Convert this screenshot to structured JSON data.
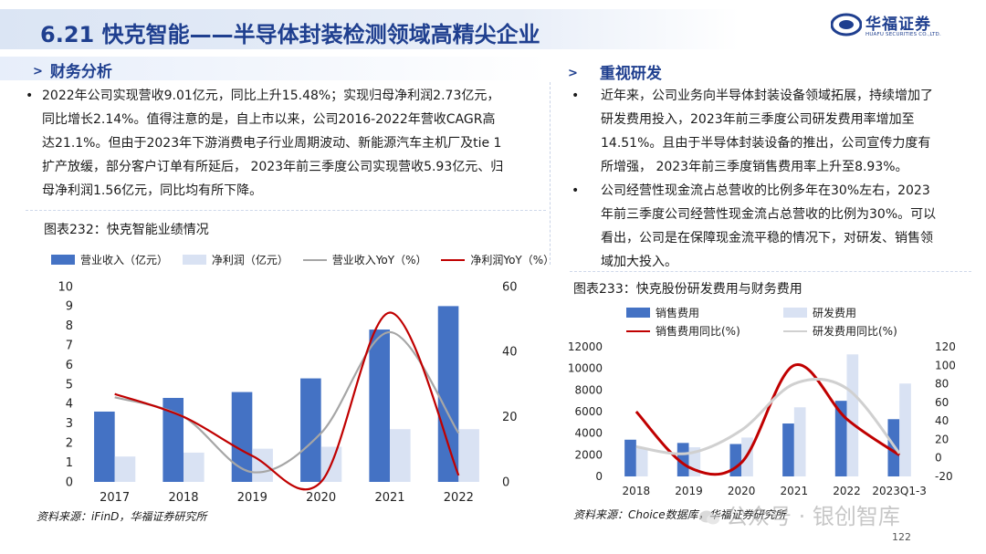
{
  "header": {
    "title": "6.21 快克智能——半导体封装检测领域高精尖企业",
    "logo_cn": "华福证券",
    "logo_en": "HUAFU SECURITIES CO.,LTD."
  },
  "left": {
    "section_title": "财务分析",
    "bullet": [
      "2022年公司实现营收9.01亿元，同比上升15.48%；实现归母净利润2.73亿元，",
      "同比增长2.14%。值得注意的是，自上市以来，公司2016-2022年营收CAGR高",
      "达21.1%。但由于2023年下游消费电子行业周期波动、新能源汽车主机厂及tie 1",
      "扩产放缓，部分客户订单有所延后， 2023年前三季度公司实现营收5.93亿元、归",
      "母净利润1.56亿元，同比均有所下降。"
    ],
    "figure_title": "图表232：快克智能业绩情况",
    "source": "资料来源：iFinD，华福证券研究所"
  },
  "right": {
    "section_title": "重视研发",
    "bullet1": [
      "近年来，公司业务向半导体封装设备领域拓展，持续增加了",
      "研发费用投入，2023年前三季度公司研发费用率增加至",
      "14.51%。且由于半导体封装设备的推出，公司宣传力度有",
      "所增强， 2023年前三季度销售费用率上升至8.93%。"
    ],
    "bullet2": [
      "公司经营性现金流占总营收的比例多年在30%左右，2023",
      "年前三季度公司经营性现金流占总营收的比例为30%。可以",
      "看出，公司是在保障现金流平稳的情况下，对研发、销售领",
      "域加大投入。"
    ],
    "figure_title": "图表233：快克股份研发费用与财务费用",
    "source": "资料来源：Choice数据库，华福证券研究所"
  },
  "watermark": "公众号 · 银创智库",
  "page_number": "122",
  "colors": {
    "brand": "#1f3f8f",
    "bar_dark": "#4472c4",
    "bar_light": "#d9e2f3",
    "line_red": "#c00000",
    "line_gray": "#a6a6a6"
  },
  "chart_data": [
    {
      "type": "bar",
      "categories": [
        "2017",
        "2018",
        "2019",
        "2020",
        "2021",
        "2022"
      ],
      "series": [
        {
          "name": "营业收入（亿元）",
          "kind": "bar",
          "axis": "left",
          "values": [
            3.6,
            4.3,
            4.6,
            5.3,
            7.8,
            9.0
          ]
        },
        {
          "name": "净利润（亿元）",
          "kind": "bar",
          "axis": "left",
          "values": [
            1.3,
            1.5,
            1.7,
            1.8,
            2.7,
            2.7
          ]
        },
        {
          "name": "营业收入YoY（%）",
          "kind": "line",
          "axis": "right",
          "values": [
            26,
            20,
            3,
            15,
            46,
            15
          ]
        },
        {
          "name": "净利润YoY（%）",
          "kind": "line",
          "axis": "right",
          "values": [
            27,
            20,
            8,
            0,
            52,
            2
          ]
        }
      ],
      "y_left": {
        "min": 0,
        "max": 10,
        "ticks": [
          "0",
          "1",
          "2",
          "3",
          "4",
          "5",
          "6",
          "7",
          "8",
          "9",
          "10"
        ]
      },
      "y_right": {
        "min": 0,
        "max": 60,
        "ticks": [
          "0",
          "20",
          "40",
          "60"
        ]
      },
      "grid": false,
      "legend": "top"
    },
    {
      "type": "bar",
      "categories": [
        "2018",
        "2019",
        "2020",
        "2021",
        "2022",
        "2023Q1-3"
      ],
      "series": [
        {
          "name": "销售费用",
          "kind": "bar",
          "axis": "left",
          "values": [
            3400,
            3100,
            3000,
            4900,
            7000,
            5300
          ]
        },
        {
          "name": "研发费用",
          "kind": "bar",
          "axis": "left",
          "values": [
            2600,
            2700,
            3600,
            6400,
            11300,
            8600
          ]
        },
        {
          "name": "销售费用同比(%)",
          "kind": "line",
          "axis": "right",
          "values": [
            50,
            -10,
            -5,
            100,
            42,
            3
          ]
        },
        {
          "name": "研发费用同比(%)",
          "kind": "line",
          "axis": "right",
          "values": [
            12,
            5,
            30,
            80,
            75,
            5
          ]
        }
      ],
      "y_left": {
        "min": 0,
        "max": 12000,
        "ticks": [
          "0",
          "2000",
          "4000",
          "6000",
          "8000",
          "10000",
          "12000"
        ]
      },
      "y_right": {
        "min": -20,
        "max": 120,
        "ticks": [
          "-20",
          "0",
          "20",
          "40",
          "60",
          "80",
          "100",
          "120"
        ]
      },
      "grid": false,
      "legend": "top"
    }
  ]
}
